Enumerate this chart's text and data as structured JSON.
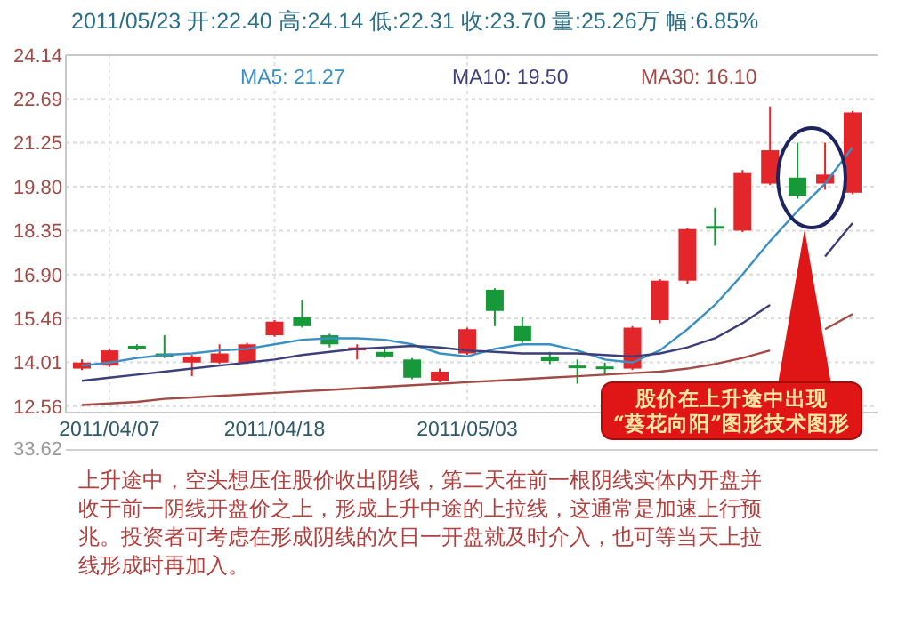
{
  "chart_data": {
    "type": "candlestick",
    "title": "2011/05/23 开:22.40 高:24.14 低:22.31 收:23.70 量:25.26万 幅:6.85%",
    "categories": [
      null,
      "2011/04/07",
      null,
      null,
      null,
      null,
      null,
      "2011/04/18",
      null,
      null,
      null,
      null,
      null,
      null,
      "2011/05/03",
      null,
      null,
      null,
      null,
      null,
      null,
      null,
      null,
      null,
      null,
      null,
      null,
      null,
      null
    ],
    "ohlc": [
      [
        13.8,
        14.1,
        13.75,
        14.0
      ],
      [
        13.9,
        14.45,
        13.85,
        14.4
      ],
      [
        14.55,
        14.6,
        14.4,
        14.45
      ],
      [
        14.3,
        14.9,
        14.15,
        14.2
      ],
      [
        14.0,
        14.25,
        13.55,
        14.2
      ],
      [
        14.0,
        14.6,
        13.95,
        14.3
      ],
      [
        14.0,
        14.65,
        13.95,
        14.6
      ],
      [
        14.9,
        15.4,
        14.85,
        15.35
      ],
      [
        15.5,
        16.05,
        15.15,
        15.2
      ],
      [
        14.9,
        14.95,
        14.5,
        14.6
      ],
      [
        14.4,
        14.6,
        14.1,
        14.5
      ],
      [
        14.35,
        14.5,
        14.15,
        14.2
      ],
      [
        14.1,
        14.15,
        13.45,
        13.5
      ],
      [
        13.4,
        13.8,
        13.35,
        13.7
      ],
      [
        14.3,
        15.15,
        14.25,
        15.1
      ],
      [
        16.4,
        16.45,
        15.2,
        15.7
      ],
      [
        15.2,
        15.5,
        14.65,
        14.7
      ],
      [
        14.2,
        14.35,
        13.95,
        14.05
      ],
      [
        13.9,
        14.1,
        13.3,
        13.85
      ],
      [
        13.87,
        14.0,
        13.6,
        13.85
      ],
      [
        13.8,
        15.2,
        13.75,
        15.15
      ],
      [
        15.4,
        16.75,
        15.3,
        16.7
      ],
      [
        16.7,
        18.45,
        16.6,
        18.4
      ],
      [
        18.5,
        19.1,
        17.85,
        18.45
      ],
      [
        18.35,
        20.35,
        18.3,
        20.25
      ],
      [
        19.9,
        22.45,
        19.85,
        21.0
      ],
      [
        20.1,
        21.25,
        19.4,
        19.5
      ],
      [
        19.9,
        21.25,
        19.7,
        20.2
      ],
      [
        19.6,
        22.3,
        19.55,
        22.25
      ]
    ],
    "series": [
      {
        "type": "line",
        "name": "MA5: 21.27",
        "color": "#3a8fc4",
        "values": [
          13.9,
          14.0,
          14.15,
          14.25,
          14.3,
          14.4,
          14.45,
          14.6,
          14.75,
          14.8,
          14.8,
          14.75,
          14.6,
          14.3,
          14.2,
          14.45,
          14.6,
          14.6,
          14.4,
          14.1,
          14.0,
          14.4,
          15.1,
          15.9,
          16.9,
          18.0,
          19.0,
          19.9,
          21.1
        ]
      },
      {
        "type": "line",
        "name": "MA10: 19.50",
        "color": "#3c3f7a",
        "values": [
          13.4,
          13.5,
          13.6,
          13.7,
          13.8,
          13.9,
          14.0,
          14.1,
          14.25,
          14.35,
          14.45,
          14.5,
          14.55,
          14.5,
          14.4,
          14.35,
          14.3,
          14.3,
          14.3,
          14.25,
          14.2,
          14.3,
          14.5,
          14.8,
          15.3,
          15.9,
          null,
          17.5,
          18.6
        ]
      },
      {
        "type": "line",
        "name": "MA30: 16.10",
        "color": "#a24a45",
        "values": [
          12.6,
          12.65,
          12.7,
          12.8,
          12.85,
          12.9,
          12.95,
          13.0,
          13.05,
          13.1,
          13.15,
          13.2,
          13.25,
          13.3,
          13.35,
          13.4,
          13.45,
          13.5,
          13.55,
          13.6,
          13.65,
          13.7,
          13.8,
          13.95,
          14.15,
          14.4,
          null,
          15.1,
          15.6
        ]
      }
    ],
    "ylim": [
      12.35,
      24.14
    ],
    "yticks": [
      12.56,
      14.01,
      15.46,
      {
        "value": 16.9,
        "label": "16.90"
      },
      18.35,
      {
        "value": 19.8,
        "label": "19.80"
      },
      21.25,
      22.69,
      24.14
    ],
    "grid": true,
    "legend": "top",
    "annotations": [
      "股价在上升途中出现\n“葵花向阳”图形技术图形",
      "33.62",
      "上升途中，空头想压住股价收出阴线，第二天在前一根阴线实体内开盘并收于前一阴线开盘价之上，形成上升中途的上拉线，这通常是加速上行预兆。投资者可考虑在形成阴线的次日一开盘就及时介入，也可等当天上拉线形成时再加入。"
    ]
  }
}
